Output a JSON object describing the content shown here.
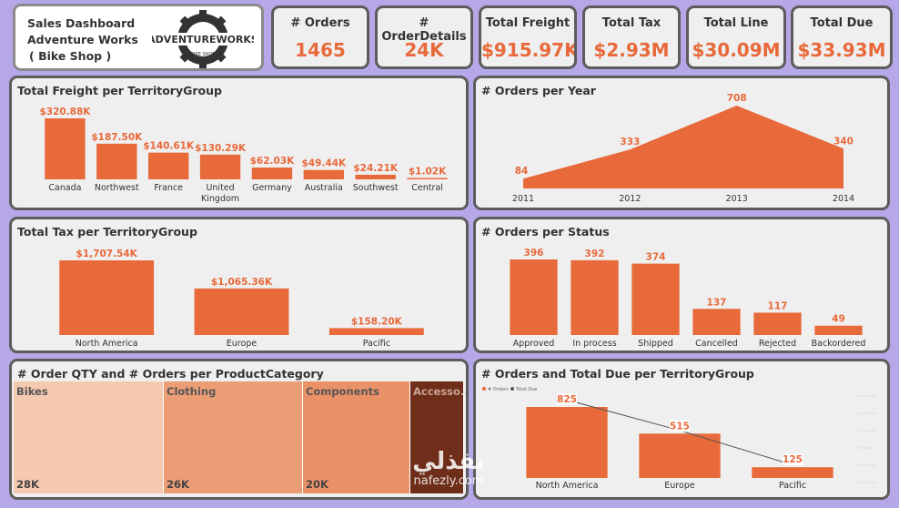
{
  "header": {
    "title_line1": "Sales Dashboard",
    "title_line2": "Adventure Works",
    "title_line3": "( Bike Shop )",
    "logo_text": "ADVENTUREWORKS",
    "logo_sub": "BIKE SHOP"
  },
  "kpis": [
    {
      "title": "# Orders",
      "value": "1465"
    },
    {
      "title": "# OrderDetails",
      "value": "24K"
    },
    {
      "title": "Total Freight",
      "value": "$915.97K"
    },
    {
      "title": "Total Tax",
      "value": "$2.93M"
    },
    {
      "title": "Total Line",
      "value": "$30.09M"
    },
    {
      "title": "Total Due",
      "value": "$33.93M"
    }
  ],
  "watermark": {
    "text1": "نفذلي",
    "text2": "nafezly.com"
  },
  "chart_data": [
    {
      "id": "freight",
      "type": "bar",
      "title": "Total Freight per TerritoryGroup",
      "categories": [
        "Canada",
        "Northwest",
        "France",
        "United Kingdom",
        "Germany",
        "Australia",
        "Southwest",
        "Central"
      ],
      "category_lines": [
        [
          "Canada"
        ],
        [
          "Northwest"
        ],
        [
          "France"
        ],
        [
          "United",
          "Kingdom"
        ],
        [
          "Germany"
        ],
        [
          "Australia"
        ],
        [
          "Southwest"
        ],
        [
          "Central"
        ]
      ],
      "values": [
        320.88,
        187.5,
        140.61,
        130.29,
        62.03,
        49.44,
        24.21,
        1.02
      ],
      "labels": [
        "$320.88K",
        "$187.50K",
        "$140.61K",
        "$130.29K",
        "$62.03K",
        "$49.44K",
        "$24.21K",
        "$1.02K"
      ]
    },
    {
      "id": "orders_year",
      "type": "area",
      "title": "# Orders per Year",
      "categories": [
        "2011",
        "2012",
        "2013",
        "2014"
      ],
      "values": [
        84,
        333,
        708,
        340
      ],
      "labels": [
        "84",
        "333",
        "708",
        "340"
      ]
    },
    {
      "id": "tax",
      "type": "bar",
      "title": "Total Tax per TerritoryGroup",
      "categories": [
        "North America",
        "Europe",
        "Pacific"
      ],
      "values": [
        1707.54,
        1065.36,
        158.2
      ],
      "labels": [
        "$1,707.54K",
        "$1,065.36K",
        "$158.20K"
      ]
    },
    {
      "id": "status",
      "type": "bar",
      "title": "# Orders per Status",
      "categories": [
        "Approved",
        "In process",
        "Shipped",
        "Cancelled",
        "Rejected",
        "Backordered"
      ],
      "values": [
        396,
        392,
        374,
        137,
        117,
        49
      ],
      "labels": [
        "396",
        "392",
        "374",
        "137",
        "117",
        "49"
      ]
    },
    {
      "id": "treemap",
      "type": "treemap",
      "title": "# Order QTY and # Orders per ProductCategory",
      "categories": [
        "Bikes",
        "Clothing",
        "Components",
        "Accesso..."
      ],
      "values": [
        28,
        26,
        20,
        10
      ],
      "labels": [
        "28K",
        "26K",
        "20K",
        ""
      ],
      "colors": [
        "#f5c8b0",
        "#ec9d76",
        "#eb9168",
        "#6e2e1a"
      ]
    },
    {
      "id": "orders_due",
      "type": "bar",
      "title": "# Orders and Total Due per TerritoryGroup",
      "legend": [
        "# Orders",
        "Total Due"
      ],
      "categories": [
        "North America",
        "Europe",
        "Pacific"
      ],
      "values": [
        825,
        515,
        125
      ],
      "labels": [
        "825",
        "515",
        "125"
      ],
      "line_values": [
        0.95,
        0.55,
        0.1
      ]
    }
  ]
}
